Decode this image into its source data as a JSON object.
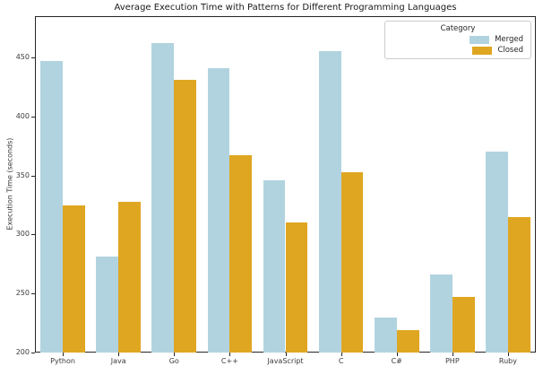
{
  "chart_data": {
    "type": "bar",
    "title": "Average Execution Time with Patterns for Different Programming Languages",
    "xlabel": "",
    "ylabel": "Execution Time (seconds)",
    "categories": [
      "Python",
      "Java",
      "Go",
      "C++",
      "JavaScript",
      "C",
      "C#",
      "PHP",
      "Ruby"
    ],
    "series": [
      {
        "name": "Merged",
        "color": "#B1D3DF",
        "values": [
          447,
          281,
          462,
          441,
          346,
          455,
          230,
          266,
          370
        ]
      },
      {
        "name": "Closed",
        "color": "#DFA621",
        "values": [
          325,
          328,
          431,
          367,
          310,
          353,
          219,
          247,
          315
        ]
      }
    ],
    "ylim": [
      200,
      485
    ],
    "yticks": [
      200,
      250,
      300,
      350,
      400,
      450
    ],
    "grid": false,
    "legend": {
      "title": "Category",
      "position": "upper right"
    },
    "colors": {
      "axis": "#262626",
      "tick_text": "#3b3b3b",
      "background": "#ffffff"
    }
  }
}
